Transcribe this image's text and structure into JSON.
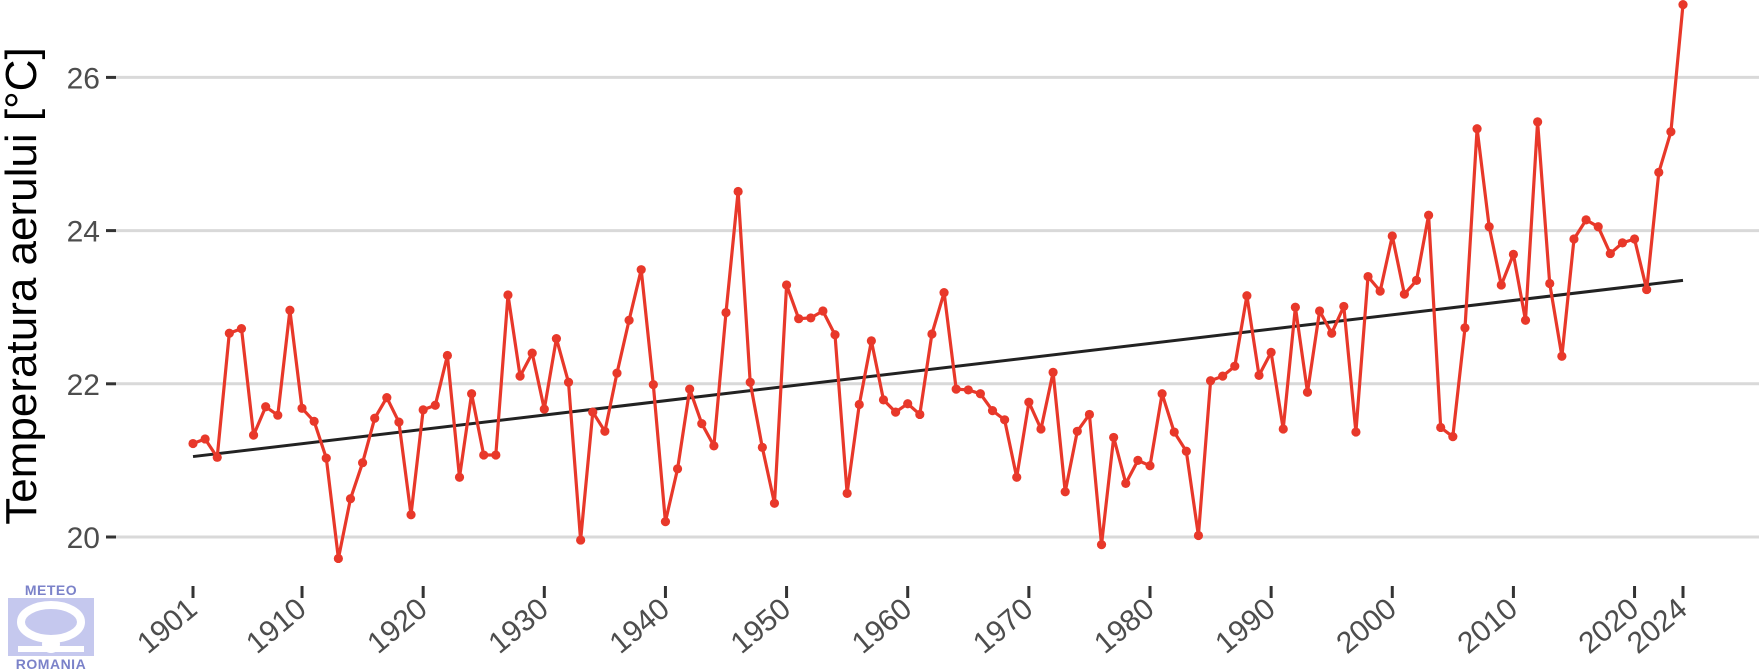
{
  "chart_data": {
    "type": "line",
    "title": "",
    "xlabel": "",
    "ylabel": "Temperatura aerului [°C]",
    "ylim": [
      19.5,
      26.95
    ],
    "xlim": [
      1901,
      2024
    ],
    "yticks": [
      20,
      22,
      24,
      26
    ],
    "xticks": [
      1901,
      1910,
      1920,
      1930,
      1940,
      1950,
      1960,
      1970,
      1980,
      1990,
      2000,
      2010,
      2020,
      2024
    ],
    "grid": "horizontal",
    "colors": {
      "series": "#e8382a",
      "trend": "#222222",
      "grid": "#d9d9d9"
    },
    "series": [
      {
        "x": [
          1901,
          1902,
          1903,
          1904,
          1905,
          1906,
          1907,
          1908,
          1909,
          1910,
          1911,
          1912,
          1913,
          1914,
          1915,
          1916,
          1917,
          1918,
          1919,
          1920,
          1921,
          1922,
          1923,
          1924,
          1925,
          1926,
          1927,
          1928,
          1929,
          1930,
          1931,
          1932,
          1933,
          1934,
          1935,
          1936,
          1937,
          1938,
          1939,
          1940,
          1941,
          1942,
          1943,
          1944,
          1945,
          1946,
          1947,
          1948,
          1949,
          1950,
          1951,
          1952,
          1953,
          1954,
          1955,
          1956,
          1957,
          1958,
          1959,
          1960,
          1961,
          1962,
          1963,
          1964,
          1965,
          1966,
          1967,
          1968,
          1969,
          1970,
          1971,
          1972,
          1973,
          1974,
          1975,
          1976,
          1977,
          1978,
          1979,
          1980,
          1981,
          1982,
          1983,
          1984,
          1985,
          1986,
          1987,
          1988,
          1989,
          1990,
          1991,
          1992,
          1993,
          1994,
          1995,
          1996,
          1997,
          1998,
          1999,
          2000,
          2001,
          2002,
          2003,
          2004,
          2005,
          2006,
          2007,
          2008,
          2009,
          2010,
          2011,
          2012,
          2013,
          2014,
          2015,
          2016,
          2017,
          2018,
          2019,
          2020,
          2021,
          2022,
          2023,
          2024
        ],
        "values": [
          21.22,
          21.28,
          21.04,
          22.66,
          22.72,
          21.33,
          21.7,
          21.59,
          22.96,
          21.68,
          21.51,
          21.03,
          19.72,
          20.5,
          20.97,
          21.55,
          21.82,
          21.5,
          20.29,
          21.66,
          21.72,
          22.37,
          20.78,
          21.87,
          21.07,
          21.07,
          23.16,
          22.1,
          22.4,
          21.67,
          22.59,
          22.02,
          19.96,
          21.63,
          21.38,
          22.14,
          22.83,
          23.49,
          21.99,
          20.2,
          20.89,
          21.93,
          21.48,
          21.19,
          22.93,
          24.51,
          22.02,
          21.17,
          20.44,
          23.29,
          22.85,
          22.86,
          22.95,
          22.64,
          20.57,
          21.73,
          22.56,
          21.79,
          21.63,
          21.74,
          21.6,
          22.65,
          23.19,
          21.93,
          21.92,
          21.87,
          21.65,
          21.53,
          20.78,
          21.76,
          21.41,
          22.15,
          20.59,
          21.38,
          21.6,
          19.9,
          21.3,
          20.7,
          21.0,
          20.93,
          21.87,
          21.37,
          21.12,
          20.02,
          22.04,
          22.1,
          22.23,
          23.15,
          22.11,
          22.41,
          21.41,
          23.0,
          21.89,
          22.95,
          22.66,
          23.01,
          21.37,
          23.4,
          23.21,
          23.93,
          23.17,
          23.35,
          24.2,
          21.43,
          21.31,
          22.73,
          25.33,
          24.05,
          23.29,
          23.69,
          22.83,
          25.42,
          23.31,
          22.36,
          23.89,
          24.14,
          24.05,
          23.7,
          23.84,
          23.89,
          23.23,
          24.76,
          25.29,
          26.95
        ]
      }
    ],
    "trend": {
      "x": [
        1901,
        2024
      ],
      "values": [
        21.05,
        23.35
      ]
    }
  },
  "logo": {
    "top_text": "METEO",
    "bottom_text": "ROMANIA"
  }
}
